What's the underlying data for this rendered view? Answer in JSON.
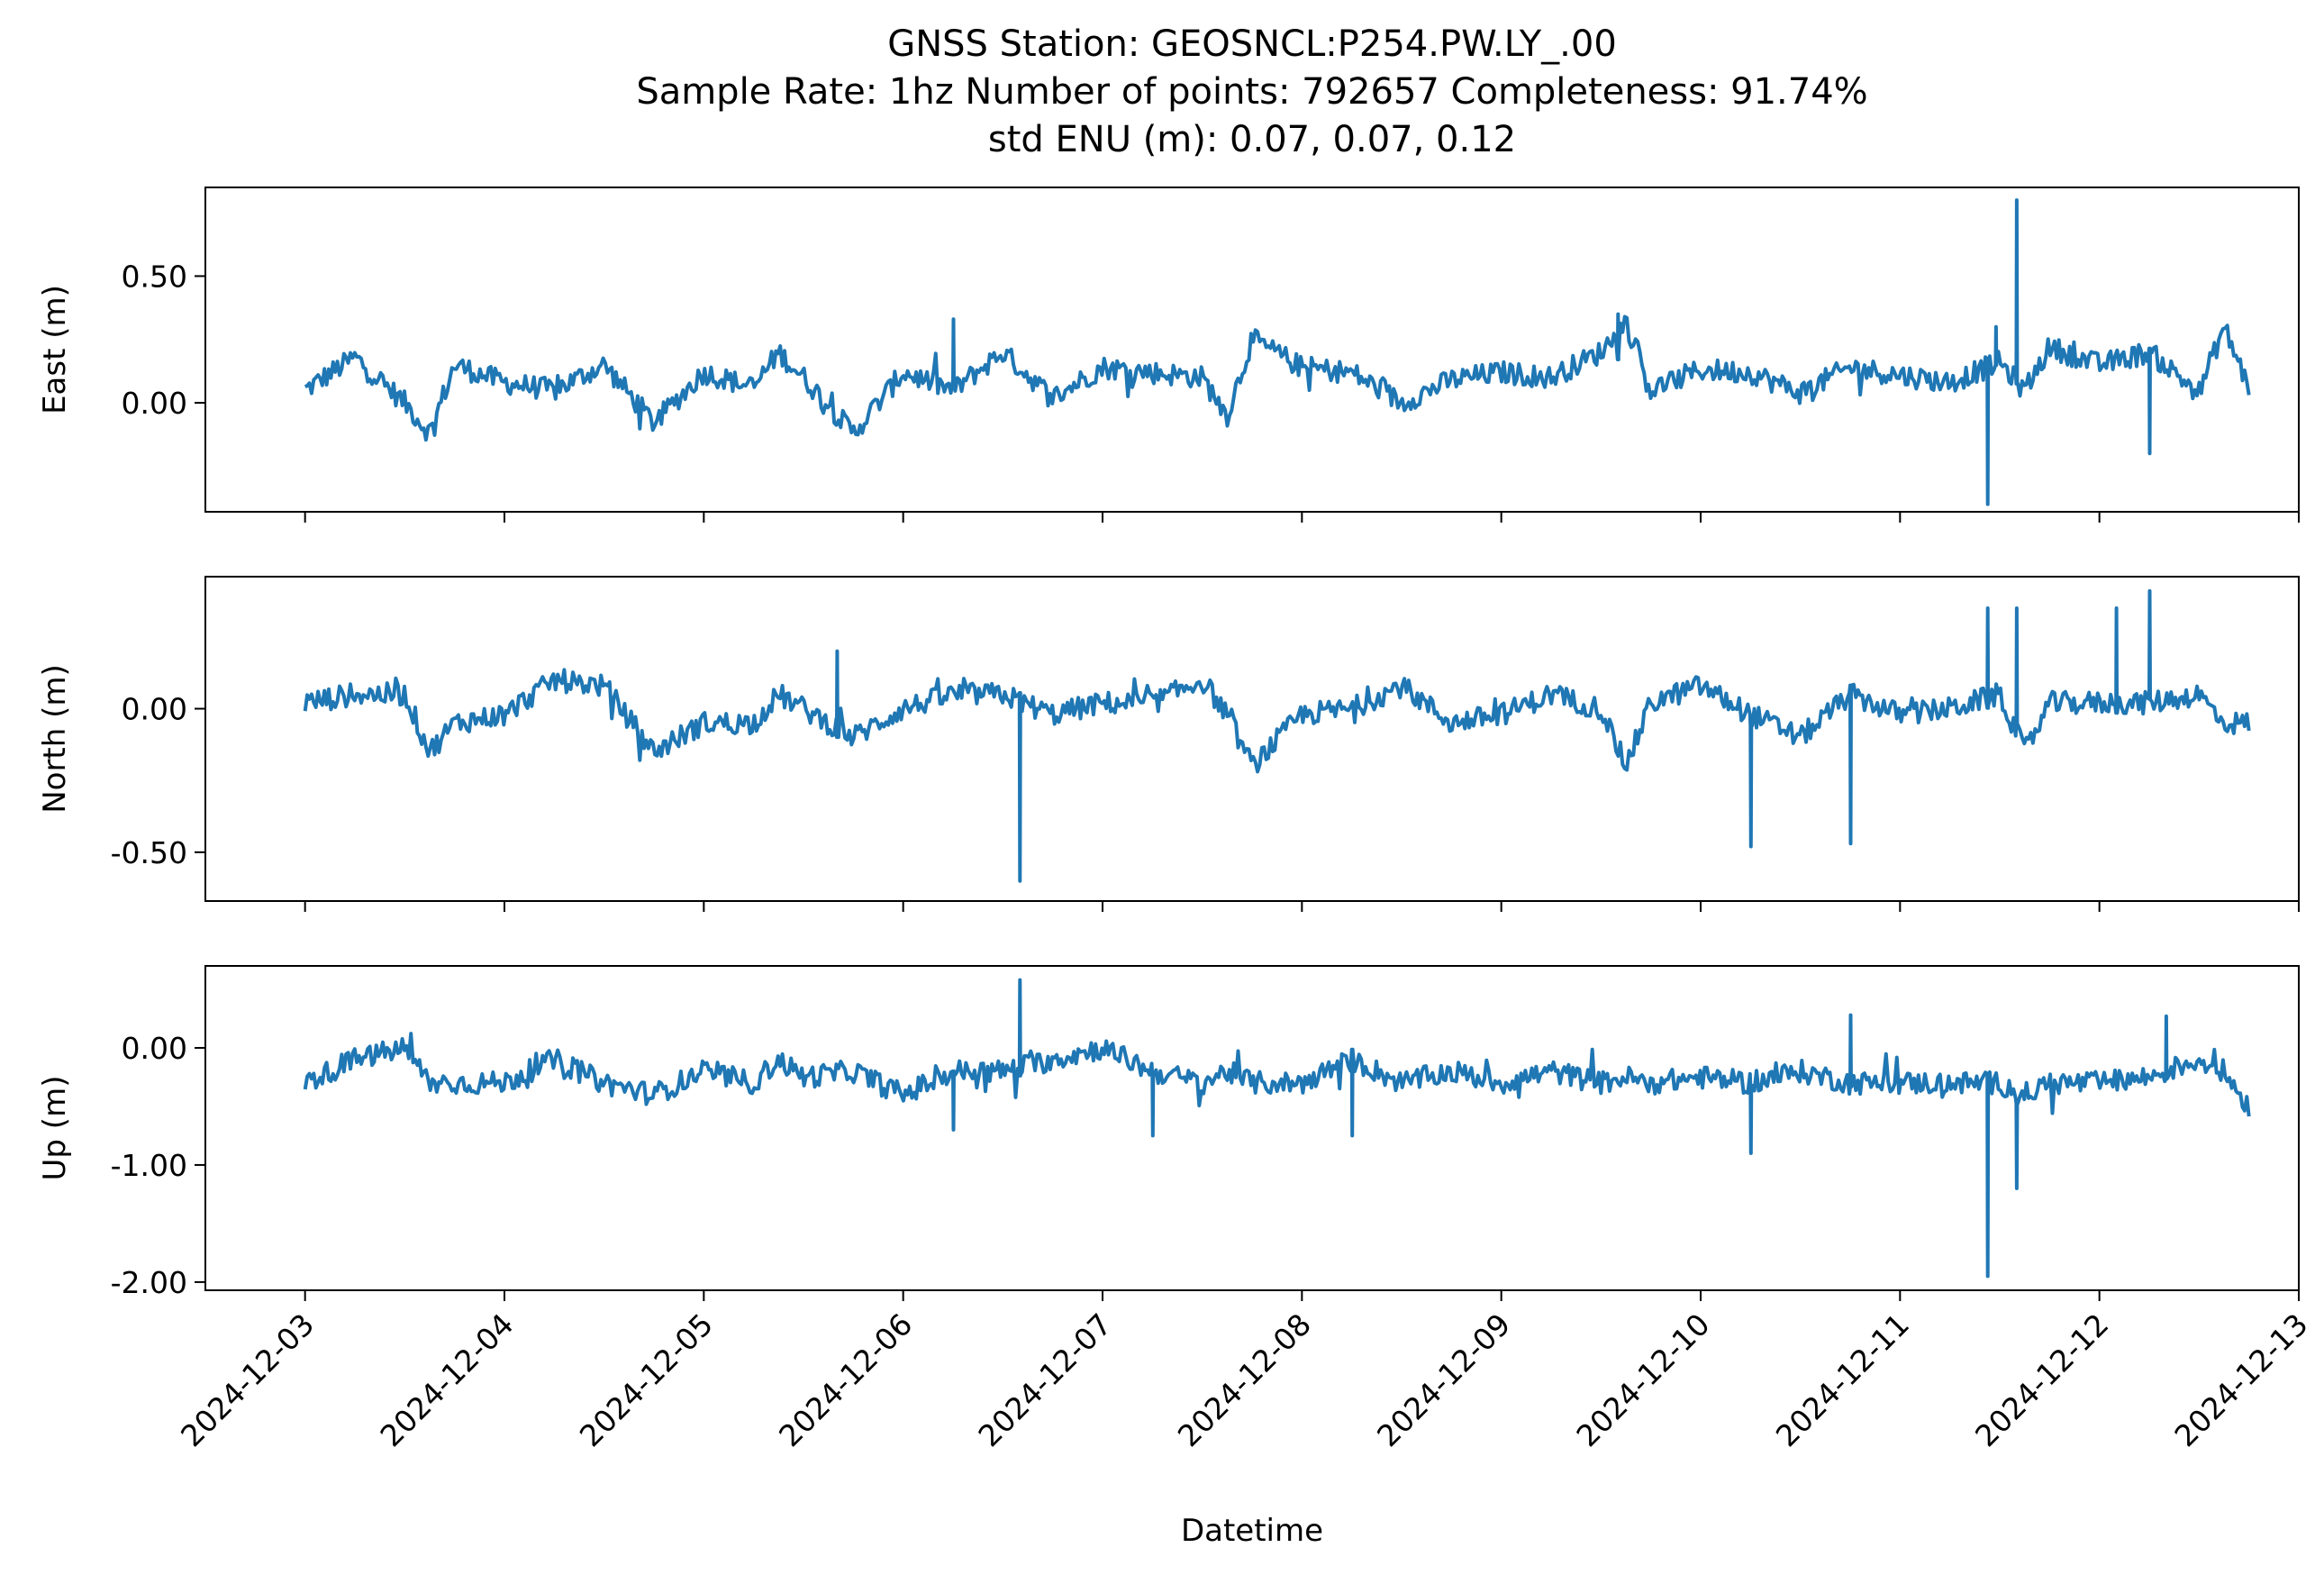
{
  "chart_data": {
    "type": "line",
    "title_lines": [
      "GNSS Station: GEOSNCL:P254.PW.LY_.00",
      "Sample Rate: 1hz   Number of points: 792657    Completeness:  91.74%",
      "std ENU (m):  0.07, 0.07, 0.12"
    ],
    "xlabel": "Datetime",
    "x_ticks": [
      "2024-12-03",
      "2024-12-04",
      "2024-12-05",
      "2024-12-06",
      "2024-12-07",
      "2024-12-08",
      "2024-12-09",
      "2024-12-10",
      "2024-12-11",
      "2024-12-12",
      "2024-12-13"
    ],
    "x_range": [
      "2024-12-02T12:00",
      "2024-12-13T00:00"
    ],
    "data_range": [
      "2024-12-03T00:00",
      "2024-12-12T18:00"
    ],
    "line_color": "#1f77b4",
    "grid": false,
    "panels": [
      {
        "ylabel": "East (m)",
        "ylim": [
          -0.43,
          0.85
        ],
        "yticks": [
          0.5,
          0.0
        ],
        "ytick_labels": [
          "0.50",
          "0.00"
        ],
        "series": {
          "x": [
            "2024-12-03T00:00",
            "2024-12-03T06:00",
            "2024-12-03T12:00",
            "2024-12-03T15:00",
            "2024-12-03T18:00",
            "2024-12-04T00:00",
            "2024-12-04T06:00",
            "2024-12-04T12:00",
            "2024-12-04T18:00",
            "2024-12-05T00:00",
            "2024-12-05T06:00",
            "2024-12-05T09:00",
            "2024-12-05T12:00",
            "2024-12-05T18:00",
            "2024-12-06T00:00",
            "2024-12-06T06:00",
            "2024-12-06T12:00",
            "2024-12-06T18:00",
            "2024-12-07T00:00",
            "2024-12-07T06:00",
            "2024-12-07T12:00",
            "2024-12-07T15:00",
            "2024-12-07T18:00",
            "2024-12-08T00:00",
            "2024-12-08T06:00",
            "2024-12-08T12:00",
            "2024-12-08T18:00",
            "2024-12-09T00:00",
            "2024-12-09T06:00",
            "2024-12-09T12:00",
            "2024-12-09T15:00",
            "2024-12-09T18:00",
            "2024-12-10T00:00",
            "2024-12-10T06:00",
            "2024-12-10T12:00",
            "2024-12-10T18:00",
            "2024-12-11T00:00",
            "2024-12-11T06:00",
            "2024-12-11T12:00",
            "2024-12-11T15:00",
            "2024-12-11T18:00",
            "2024-12-12T00:00",
            "2024-12-12T06:00",
            "2024-12-12T12:00",
            "2024-12-12T15:00",
            "2024-12-12T18:00"
          ],
          "values": [
            0.05,
            0.18,
            0.0,
            -0.12,
            0.15,
            0.08,
            0.05,
            0.15,
            -0.08,
            0.12,
            0.06,
            0.2,
            0.1,
            -0.12,
            0.12,
            0.05,
            0.2,
            0.02,
            0.14,
            0.12,
            0.1,
            -0.05,
            0.25,
            0.14,
            0.12,
            0.0,
            0.09,
            0.12,
            0.1,
            0.2,
            0.32,
            0.05,
            0.13,
            0.12,
            0.04,
            0.14,
            0.11,
            0.08,
            0.16,
            0.05,
            0.22,
            0.15,
            0.2,
            0.04,
            0.3,
            0.06
          ]
        },
        "spikes": [
          {
            "x": "2024-12-11T10:30",
            "value": -0.4
          },
          {
            "x": "2024-12-11T11:30",
            "value": 0.3
          },
          {
            "x": "2024-12-11T14:00",
            "value": 0.8
          },
          {
            "x": "2024-12-12T06:00",
            "value": -0.2
          },
          {
            "x": "2024-12-06T06:00",
            "value": 0.33
          },
          {
            "x": "2024-12-09T14:00",
            "value": 0.35
          }
        ]
      },
      {
        "ylabel": "North (m)",
        "ylim": [
          -0.67,
          0.46
        ],
        "yticks": [
          0.0,
          -0.5
        ],
        "ytick_labels": [
          "0.00",
          "-0.50"
        ],
        "series": {
          "x": [
            "2024-12-03T00:00",
            "2024-12-03T06:00",
            "2024-12-03T12:00",
            "2024-12-03T15:00",
            "2024-12-03T18:00",
            "2024-12-04T00:00",
            "2024-12-04T06:00",
            "2024-12-04T12:00",
            "2024-12-04T18:00",
            "2024-12-05T00:00",
            "2024-12-05T06:00",
            "2024-12-05T09:00",
            "2024-12-05T12:00",
            "2024-12-05T18:00",
            "2024-12-06T00:00",
            "2024-12-06T06:00",
            "2024-12-06T12:00",
            "2024-12-06T18:00",
            "2024-12-07T00:00",
            "2024-12-07T06:00",
            "2024-12-07T12:00",
            "2024-12-07T15:00",
            "2024-12-07T18:00",
            "2024-12-08T00:00",
            "2024-12-08T06:00",
            "2024-12-08T12:00",
            "2024-12-08T18:00",
            "2024-12-09T00:00",
            "2024-12-09T06:00",
            "2024-12-09T12:00",
            "2024-12-09T15:00",
            "2024-12-09T18:00",
            "2024-12-10T00:00",
            "2024-12-10T06:00",
            "2024-12-10T12:00",
            "2024-12-10T18:00",
            "2024-12-11T00:00",
            "2024-12-11T06:00",
            "2024-12-11T12:00",
            "2024-12-11T15:00",
            "2024-12-11T18:00",
            "2024-12-12T00:00",
            "2024-12-12T06:00",
            "2024-12-12T12:00",
            "2024-12-12T15:00",
            "2024-12-12T18:00"
          ],
          "values": [
            0.02,
            0.05,
            0.05,
            -0.15,
            -0.05,
            -0.02,
            0.1,
            0.08,
            -0.15,
            -0.05,
            -0.05,
            0.05,
            0.0,
            -0.1,
            0.0,
            0.05,
            0.05,
            -0.02,
            0.02,
            0.02,
            0.1,
            -0.02,
            -0.2,
            -0.02,
            0.0,
            0.08,
            -0.05,
            -0.02,
            0.05,
            0.0,
            -0.2,
            0.02,
            0.08,
            -0.02,
            -0.1,
            0.05,
            -0.02,
            0.0,
            0.05,
            -0.15,
            0.02,
            0.02,
            0.02,
            0.05,
            -0.05,
            -0.05
          ]
        },
        "spikes": [
          {
            "x": "2024-12-06T14:00",
            "value": -0.6
          },
          {
            "x": "2024-12-05T16:00",
            "value": 0.2
          },
          {
            "x": "2024-12-10T06:00",
            "value": -0.48
          },
          {
            "x": "2024-12-10T18:00",
            "value": -0.47
          },
          {
            "x": "2024-12-11T10:30",
            "value": 0.35
          },
          {
            "x": "2024-12-11T14:00",
            "value": 0.35
          },
          {
            "x": "2024-12-12T02:00",
            "value": 0.35
          },
          {
            "x": "2024-12-12T06:00",
            "value": 0.41
          }
        ]
      },
      {
        "ylabel": "Up (m)",
        "ylim": [
          -2.07,
          0.7
        ],
        "yticks": [
          0.0,
          -1.0,
          -2.0
        ],
        "ytick_labels": [
          "0.00",
          "-1.00",
          "-2.00"
        ],
        "series": {
          "x": [
            "2024-12-03T00:00",
            "2024-12-03T06:00",
            "2024-12-03T12:00",
            "2024-12-03T15:00",
            "2024-12-03T18:00",
            "2024-12-04T00:00",
            "2024-12-04T06:00",
            "2024-12-04T12:00",
            "2024-12-04T18:00",
            "2024-12-05T00:00",
            "2024-12-05T06:00",
            "2024-12-05T09:00",
            "2024-12-05T12:00",
            "2024-12-05T18:00",
            "2024-12-06T00:00",
            "2024-12-06T06:00",
            "2024-12-06T12:00",
            "2024-12-06T18:00",
            "2024-12-07T00:00",
            "2024-12-07T06:00",
            "2024-12-07T12:00",
            "2024-12-07T15:00",
            "2024-12-07T18:00",
            "2024-12-08T00:00",
            "2024-12-08T06:00",
            "2024-12-08T12:00",
            "2024-12-08T18:00",
            "2024-12-09T00:00",
            "2024-12-09T06:00",
            "2024-12-09T12:00",
            "2024-12-09T15:00",
            "2024-12-09T18:00",
            "2024-12-10T00:00",
            "2024-12-10T06:00",
            "2024-12-10T12:00",
            "2024-12-10T18:00",
            "2024-12-11T00:00",
            "2024-12-11T06:00",
            "2024-12-11T12:00",
            "2024-12-11T15:00",
            "2024-12-11T18:00",
            "2024-12-12T00:00",
            "2024-12-12T06:00",
            "2024-12-12T12:00",
            "2024-12-12T15:00",
            "2024-12-12T18:00"
          ],
          "values": [
            -0.3,
            -0.1,
            0.0,
            -0.3,
            -0.3,
            -0.3,
            -0.1,
            -0.3,
            -0.4,
            -0.2,
            -0.3,
            -0.1,
            -0.25,
            -0.2,
            -0.4,
            -0.2,
            -0.2,
            -0.1,
            0.0,
            -0.2,
            -0.3,
            -0.2,
            -0.3,
            -0.3,
            -0.1,
            -0.3,
            -0.2,
            -0.3,
            -0.2,
            -0.3,
            -0.25,
            -0.3,
            -0.25,
            -0.3,
            -0.2,
            -0.3,
            -0.3,
            -0.3,
            -0.3,
            -0.4,
            -0.3,
            -0.3,
            -0.25,
            -0.1,
            -0.2,
            -0.5
          ]
        },
        "spikes": [
          {
            "x": "2024-12-06T14:00",
            "value": 0.58
          },
          {
            "x": "2024-12-06T06:00",
            "value": -0.7
          },
          {
            "x": "2024-12-07T06:00",
            "value": -0.75
          },
          {
            "x": "2024-12-08T06:00",
            "value": -0.75
          },
          {
            "x": "2024-12-10T06:00",
            "value": -0.9
          },
          {
            "x": "2024-12-10T18:00",
            "value": 0.28
          },
          {
            "x": "2024-12-11T10:30",
            "value": -1.95
          },
          {
            "x": "2024-12-11T14:00",
            "value": -1.2
          },
          {
            "x": "2024-12-12T08:00",
            "value": 0.27
          }
        ]
      }
    ]
  }
}
